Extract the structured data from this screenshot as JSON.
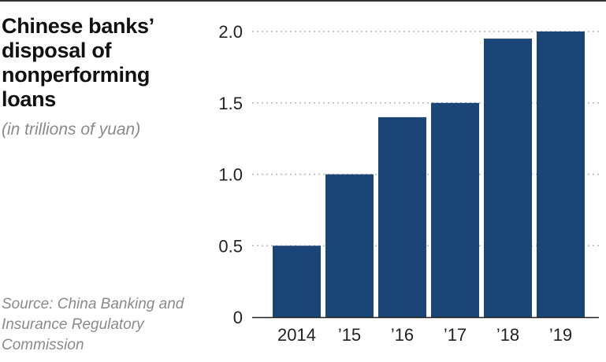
{
  "chart_data": {
    "type": "bar",
    "title": "Chinese banks’ disposal of nonperforming loans",
    "subtitle": "(in trillions of yuan)",
    "source": "Source: China Banking and Insurance Regulatory Commission",
    "categories": [
      "2014",
      "’15",
      "’16",
      "’17",
      "’18",
      "’19"
    ],
    "values": [
      0.5,
      1.0,
      1.4,
      1.5,
      1.95,
      2.0
    ],
    "ylim": [
      0,
      2.0
    ],
    "yticks": [
      "0",
      "0.5",
      "1.0",
      "1.5",
      "2.0"
    ],
    "grid": true,
    "bar_color": "#1b4477",
    "grid_color": "#b5b5b5"
  }
}
